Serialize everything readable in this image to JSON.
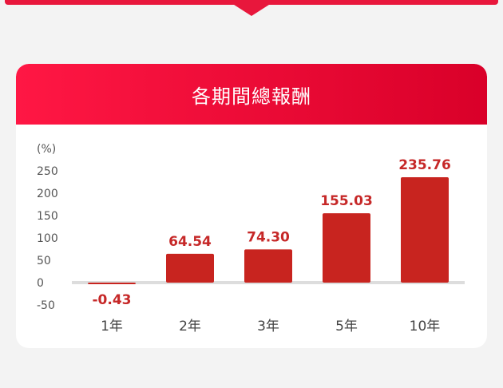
{
  "header": {
    "title": "各期間總報酬"
  },
  "chart_data": {
    "type": "bar",
    "title": "各期間總報酬",
    "ylabel": "(%)",
    "categories": [
      "1年",
      "2年",
      "3年",
      "5年",
      "10年"
    ],
    "values": [
      -0.43,
      64.54,
      74.3,
      155.03,
      235.76
    ],
    "value_labels": [
      "-0.43",
      "64.54",
      "74.30",
      "155.03",
      "235.76"
    ],
    "yticks": [
      "250",
      "200",
      "150",
      "100",
      "50",
      "0",
      "-50"
    ],
    "ytick_values": [
      250,
      200,
      150,
      100,
      50,
      0,
      -50
    ],
    "ylim": [
      -50,
      250
    ],
    "bar_color": "#c8241f",
    "label_color": "#c62828",
    "grid": false
  }
}
